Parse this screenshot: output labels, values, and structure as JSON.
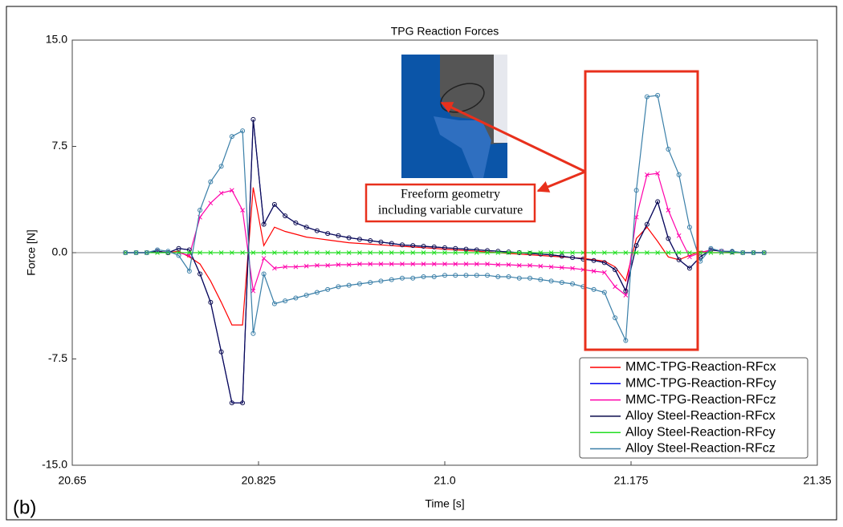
{
  "chart_data": {
    "type": "line",
    "title": "TPG Reaction Forces",
    "x_label": "Time [s]",
    "y_label": "Force [N]",
    "panel_label": "(b)",
    "annotation_lines": [
      "Freeform geometry",
      "including variable curvature"
    ],
    "legend": "lower right",
    "grid": false,
    "xlim": [
      20.65,
      21.35
    ],
    "xticks": [
      20.65,
      20.825,
      {
        "value": 21.0,
        "label": "21.0"
      },
      21.175,
      21.35
    ],
    "ylim": [
      -15,
      15
    ],
    "yticks": [
      {
        "value": 15,
        "label": "15.0"
      },
      {
        "value": 7.5,
        "label": "7.5"
      },
      {
        "value": 0,
        "label": "0.0"
      },
      {
        "value": -7.5,
        "label": "-7.5"
      },
      {
        "value": -15,
        "label": "-15.0"
      }
    ],
    "x": [
      20.7,
      20.71,
      20.72,
      20.73,
      20.74,
      20.75,
      20.76,
      20.77,
      20.78,
      20.79,
      20.8,
      20.81,
      20.82,
      20.83,
      20.84,
      20.85,
      20.86,
      20.87,
      20.88,
      20.89,
      20.9,
      20.91,
      20.92,
      20.93,
      20.94,
      20.95,
      20.96,
      20.97,
      20.98,
      20.99,
      21.0,
      21.01,
      21.02,
      21.03,
      21.04,
      21.05,
      21.06,
      21.07,
      21.08,
      21.09,
      21.1,
      21.11,
      21.12,
      21.13,
      21.14,
      21.15,
      21.16,
      21.17,
      21.18,
      21.19,
      21.2,
      21.21,
      21.22,
      21.23,
      21.24,
      21.25,
      21.26,
      21.27,
      21.28,
      21.29,
      21.3
    ],
    "series": [
      {
        "name": "MMC-TPG-Reaction-RFcx",
        "color": "#ff0000",
        "marker": "none",
        "values": [
          0,
          0,
          0,
          0.1,
          0,
          0.1,
          -0.3,
          -0.8,
          -2.0,
          -3.5,
          -5.1,
          -5.1,
          4.6,
          0.5,
          1.8,
          1.5,
          1.3,
          1.1,
          1.0,
          0.9,
          0.8,
          0.7,
          0.65,
          0.6,
          0.55,
          0.5,
          0.45,
          0.4,
          0.35,
          0.3,
          0.25,
          0.2,
          0.15,
          0.1,
          0.05,
          0,
          -0.05,
          -0.1,
          -0.15,
          -0.2,
          -0.25,
          -0.3,
          -0.35,
          -0.4,
          -0.5,
          -0.6,
          -1.0,
          -2.0,
          1.0,
          1.8,
          0.8,
          -0.3,
          -0.5,
          -0.2,
          0.1,
          0,
          0,
          0,
          0,
          0,
          0
        ]
      },
      {
        "name": "MMC-TPG-Reaction-RFcy",
        "color": "#0000ee",
        "marker": "none",
        "values": [
          0,
          0,
          0,
          0.1,
          0,
          0.3,
          0.2,
          -1.5,
          -3.5,
          -7.0,
          -10.6,
          -10.6,
          9.4,
          2.0,
          3.4,
          2.6,
          2.1,
          1.8,
          1.55,
          1.35,
          1.2,
          1.05,
          0.95,
          0.85,
          0.75,
          0.65,
          0.55,
          0.5,
          0.45,
          0.4,
          0.35,
          0.3,
          0.25,
          0.2,
          0.15,
          0.1,
          0.05,
          0,
          -0.05,
          -0.1,
          -0.15,
          -0.25,
          -0.35,
          -0.45,
          -0.55,
          -0.7,
          -1.2,
          -2.7,
          0.5,
          2.0,
          3.6,
          1.0,
          -0.5,
          -1.1,
          -0.3,
          0.2,
          0.1,
          0.05,
          0,
          0,
          0
        ]
      },
      {
        "name": "MMC-TPG-Reaction-RFcz",
        "color": "#ff00aa",
        "marker": "x",
        "values": [
          0,
          0,
          0,
          0.1,
          0,
          0,
          -0.2,
          2.5,
          3.5,
          4.2,
          4.4,
          3.0,
          -2.7,
          -0.4,
          -1.1,
          -1.0,
          -1.0,
          -0.95,
          -0.9,
          -0.9,
          -0.85,
          -0.85,
          -0.8,
          -0.8,
          -0.8,
          -0.8,
          -0.8,
          -0.8,
          -0.8,
          -0.8,
          -0.8,
          -0.8,
          -0.8,
          -0.8,
          -0.8,
          -0.85,
          -0.85,
          -0.9,
          -0.9,
          -0.95,
          -1.0,
          -1.05,
          -1.1,
          -1.2,
          -1.3,
          -1.4,
          -2.4,
          -3.0,
          2.5,
          5.5,
          5.6,
          3.0,
          1.2,
          -0.3,
          0,
          0.2,
          0.1,
          0,
          0,
          0,
          0
        ]
      },
      {
        "name": "Alloy Steel-Reaction-RFcx",
        "color": "#0b0b4d",
        "marker": "o",
        "values": [
          0,
          0,
          0,
          0.1,
          0,
          0.3,
          0.2,
          -1.5,
          -3.5,
          -7.0,
          -10.6,
          -10.6,
          9.4,
          2.0,
          3.4,
          2.6,
          2.1,
          1.8,
          1.55,
          1.35,
          1.2,
          1.05,
          0.95,
          0.85,
          0.75,
          0.65,
          0.55,
          0.5,
          0.45,
          0.4,
          0.35,
          0.3,
          0.25,
          0.2,
          0.15,
          0.1,
          0.05,
          0,
          -0.05,
          -0.1,
          -0.15,
          -0.25,
          -0.35,
          -0.45,
          -0.55,
          -0.7,
          -1.2,
          -2.7,
          0.5,
          2.0,
          3.6,
          1.0,
          -0.5,
          -1.1,
          -0.3,
          0.2,
          0.1,
          0.05,
          0,
          0,
          0
        ]
      },
      {
        "name": "Alloy Steel-Reaction-RFcy",
        "color": "#22dd22",
        "marker": "x",
        "values": [
          0,
          0,
          0,
          0,
          0,
          0,
          0,
          0,
          0,
          0,
          0,
          0,
          0,
          0,
          0,
          0,
          0,
          0,
          0,
          0,
          0,
          0,
          0,
          0,
          0,
          0,
          0,
          0,
          0,
          0,
          0,
          0,
          0,
          0,
          0,
          0,
          0,
          0,
          0,
          0,
          0,
          0,
          0,
          0,
          0,
          0,
          0,
          0,
          0,
          0,
          0,
          0,
          0,
          0,
          0,
          0,
          0,
          0,
          0,
          0,
          0
        ]
      },
      {
        "name": "Alloy Steel-Reaction-RFcz",
        "color": "#3a7fa8",
        "marker": "o",
        "values": [
          0,
          0,
          0,
          0.2,
          0.1,
          -0.2,
          -1.3,
          3.0,
          5.0,
          6.1,
          8.2,
          8.6,
          -5.7,
          -1.5,
          -3.6,
          -3.4,
          -3.2,
          -3.0,
          -2.8,
          -2.6,
          -2.4,
          -2.3,
          -2.2,
          -2.1,
          -2.0,
          -1.9,
          -1.8,
          -1.8,
          -1.7,
          -1.7,
          -1.6,
          -1.6,
          -1.6,
          -1.6,
          -1.6,
          -1.7,
          -1.7,
          -1.8,
          -1.8,
          -1.9,
          -2.0,
          -2.1,
          -2.2,
          -2.4,
          -2.6,
          -2.8,
          -4.6,
          -6.2,
          4.4,
          11.0,
          11.1,
          7.3,
          5.5,
          1.8,
          -0.6,
          0.3,
          0.1,
          0.1,
          0,
          0,
          0
        ]
      }
    ]
  }
}
